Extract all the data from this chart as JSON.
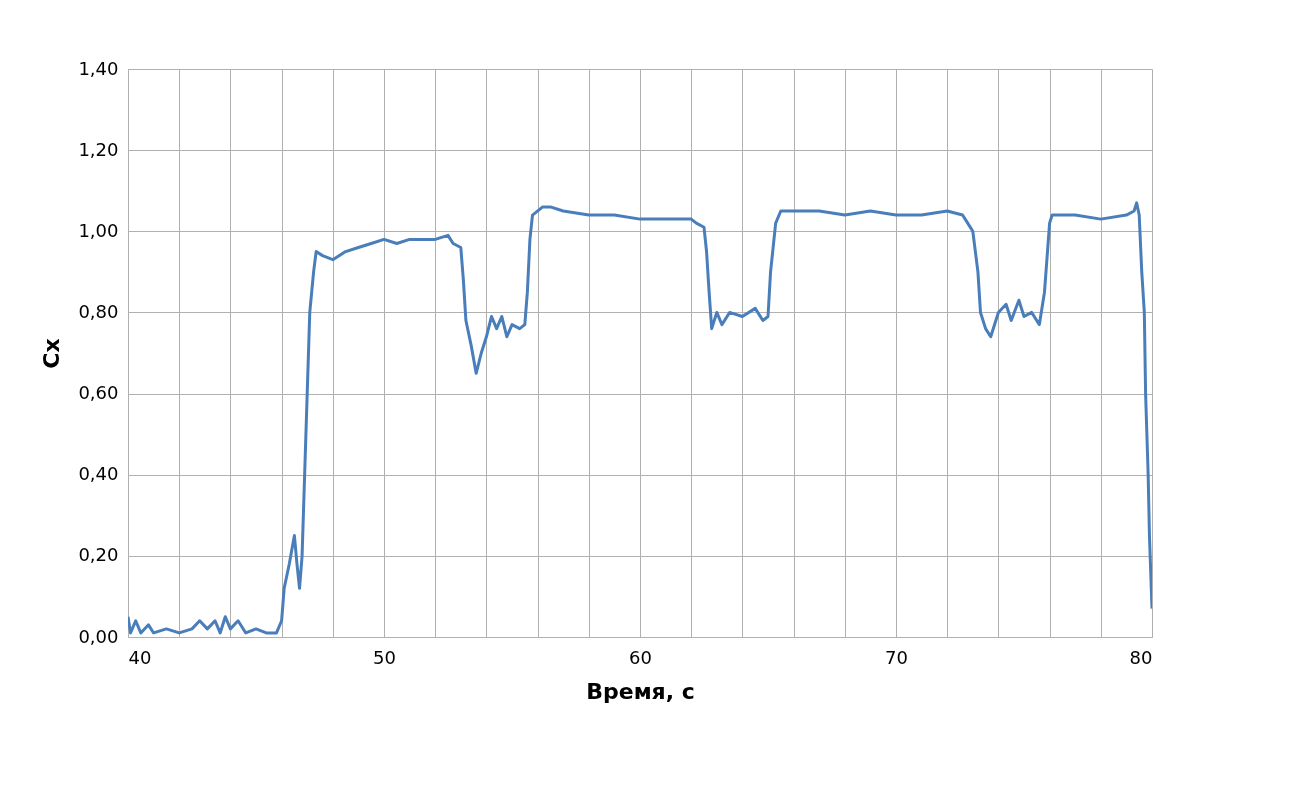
{
  "chart_data": {
    "type": "line",
    "xlabel": "Время, с",
    "ylabel": "Cx",
    "xlim": [
      40,
      80
    ],
    "xticks": [
      40,
      {
        "value": 42,
        "label": null
      },
      {
        "value": 44,
        "label": null
      },
      {
        "value": 46,
        "label": null
      },
      {
        "value": 48,
        "label": null
      },
      50,
      {
        "value": 52,
        "label": null
      },
      {
        "value": 54,
        "label": null
      },
      {
        "value": 56,
        "label": null
      },
      {
        "value": 58,
        "label": null
      },
      60,
      {
        "value": 62,
        "label": null
      },
      {
        "value": 64,
        "label": null
      },
      {
        "value": 66,
        "label": null
      },
      {
        "value": 68,
        "label": null
      },
      70,
      {
        "value": 72,
        "label": null
      },
      {
        "value": 74,
        "label": null
      },
      {
        "value": 76,
        "label": null
      },
      {
        "value": 78,
        "label": null
      },
      80
    ],
    "ylim": [
      0,
      1.4
    ],
    "yticks": [
      {
        "value": 0,
        "label": "0,00"
      },
      {
        "value": 0.2,
        "label": "0,20"
      },
      {
        "value": 0.4,
        "label": "0,40"
      },
      {
        "value": 0.6,
        "label": "0,60"
      },
      {
        "value": 0.8,
        "label": "0,80"
      },
      {
        "value": 1.0,
        "label": "1,00"
      },
      {
        "value": 1.2,
        "label": "1,20"
      },
      {
        "value": 1.4,
        "label": "1,40"
      }
    ],
    "grid": true,
    "marker": "none",
    "line_style": "solid",
    "series": [
      {
        "color": "#4a7ebb",
        "x": [
          40.0,
          40.1,
          40.3,
          40.5,
          40.8,
          41.0,
          41.5,
          42.0,
          42.5,
          42.8,
          43.1,
          43.4,
          43.6,
          43.8,
          44.0,
          44.3,
          44.6,
          45.0,
          45.4,
          45.8,
          46.0,
          46.1,
          46.3,
          46.5,
          46.6,
          46.7,
          46.8,
          46.9,
          47.0,
          47.1,
          47.25,
          47.35,
          47.6,
          48.0,
          48.5,
          49.0,
          49.5,
          50.0,
          50.5,
          51.0,
          51.5,
          52.0,
          52.5,
          52.7,
          53.0,
          53.1,
          53.2,
          53.4,
          53.6,
          53.8,
          54.0,
          54.2,
          54.4,
          54.6,
          54.8,
          55.0,
          55.3,
          55.5,
          55.6,
          55.7,
          55.8,
          56.2,
          56.5,
          57.0,
          58.0,
          59.0,
          60.0,
          61.0,
          62.0,
          62.2,
          62.5,
          62.6,
          62.7,
          62.8,
          63.0,
          63.2,
          63.5,
          64.0,
          64.5,
          64.8,
          65.0,
          65.1,
          65.3,
          65.5,
          66.0,
          67.0,
          68.0,
          69.0,
          70.0,
          71.0,
          72.0,
          72.6,
          72.8,
          73.0,
          73.2,
          73.3,
          73.5,
          73.7,
          74.0,
          74.3,
          74.5,
          74.8,
          75.0,
          75.3,
          75.6,
          75.8,
          76.0,
          76.1,
          77.0,
          78.0,
          79.0,
          79.3,
          79.4,
          79.5,
          79.6,
          79.7,
          79.75,
          79.85,
          79.9,
          80.0
        ],
        "values": [
          0.05,
          0.01,
          0.04,
          0.01,
          0.03,
          0.01,
          0.02,
          0.01,
          0.02,
          0.04,
          0.02,
          0.04,
          0.01,
          0.05,
          0.02,
          0.04,
          0.01,
          0.02,
          0.01,
          0.01,
          0.04,
          0.12,
          0.18,
          0.25,
          0.18,
          0.12,
          0.2,
          0.4,
          0.6,
          0.8,
          0.9,
          0.95,
          0.94,
          0.93,
          0.95,
          0.96,
          0.97,
          0.98,
          0.97,
          0.98,
          0.98,
          0.98,
          0.99,
          0.97,
          0.96,
          0.88,
          0.78,
          0.72,
          0.65,
          0.7,
          0.74,
          0.79,
          0.76,
          0.79,
          0.74,
          0.77,
          0.76,
          0.77,
          0.85,
          0.98,
          1.04,
          1.06,
          1.06,
          1.05,
          1.04,
          1.04,
          1.03,
          1.03,
          1.03,
          1.02,
          1.01,
          0.95,
          0.85,
          0.76,
          0.8,
          0.77,
          0.8,
          0.79,
          0.81,
          0.78,
          0.79,
          0.9,
          1.02,
          1.05,
          1.05,
          1.05,
          1.04,
          1.05,
          1.04,
          1.04,
          1.05,
          1.04,
          1.02,
          1.0,
          0.9,
          0.8,
          0.76,
          0.74,
          0.8,
          0.82,
          0.78,
          0.83,
          0.79,
          0.8,
          0.77,
          0.85,
          1.02,
          1.04,
          1.04,
          1.03,
          1.04,
          1.05,
          1.07,
          1.04,
          0.9,
          0.8,
          0.6,
          0.4,
          0.25,
          0.07
        ]
      }
    ]
  }
}
